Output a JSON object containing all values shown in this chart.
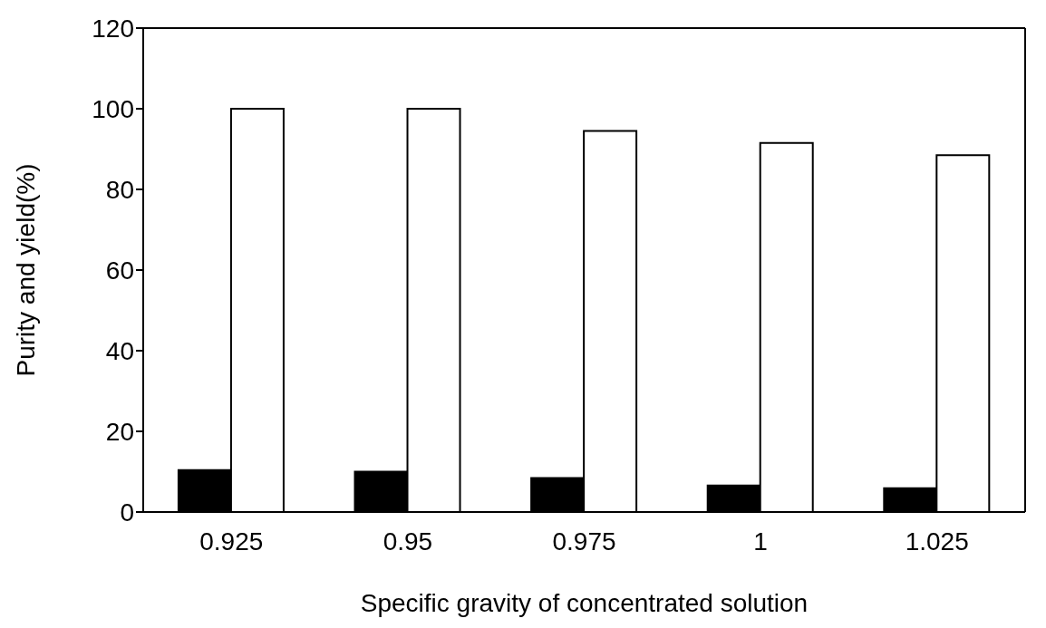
{
  "chart_data": {
    "type": "bar",
    "xlabel": "Specific gravity of concentrated solution",
    "ylabel": "Purity and yield(%)",
    "categories": [
      "0.925",
      "0.95",
      "0.975",
      "1",
      "1.025"
    ],
    "series": [
      {
        "color": "#000000",
        "values": [
          10.4,
          10,
          8.4,
          6.6,
          5.9
        ]
      },
      {
        "color": "#ffffff",
        "values": [
          100,
          100,
          94.5,
          91.5,
          88.5
        ]
      }
    ],
    "ylim": [
      0,
      120
    ],
    "yticks": [
      0,
      20,
      40,
      60,
      80,
      100,
      120
    ],
    "grid": false,
    "legend": false
  }
}
